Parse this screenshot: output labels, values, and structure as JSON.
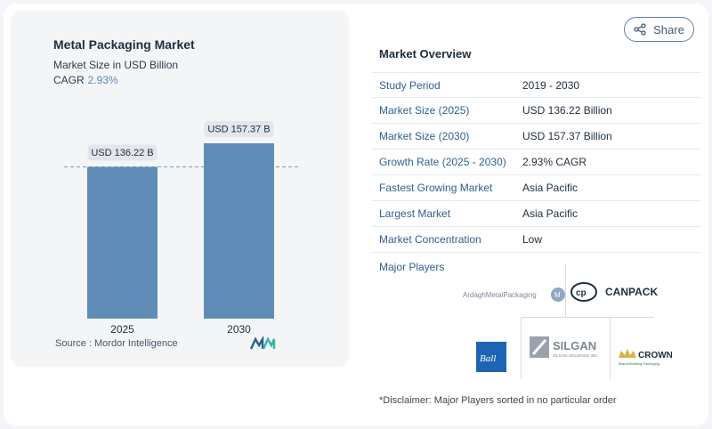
{
  "chart": {
    "title": "Metal Packaging Market",
    "subtitle": "Market Size in USD Billion",
    "cagr_label": "CAGR",
    "cagr_value": "2.93%",
    "source": "Source :  Mordor Intelligence"
  },
  "chart_data": {
    "type": "bar",
    "categories": [
      "2025",
      "2030"
    ],
    "values": [
      136.22,
      157.37
    ],
    "data_labels": [
      "USD 136.22 B",
      "USD 157.37 B"
    ],
    "title": "Metal Packaging Market",
    "subtitle": "Market Size in USD Billion",
    "grid": false,
    "bar_color": "#5f8db8"
  },
  "share": {
    "label": "Share"
  },
  "overview": {
    "title": "Market Overview",
    "rows": [
      {
        "label": "Study Period",
        "value": "2019 - 2030"
      },
      {
        "label": "Market Size (2025)",
        "value": "USD 136.22 Billion"
      },
      {
        "label": "Market Size (2030)",
        "value": "USD 157.37 Billion"
      },
      {
        "label": "Growth Rate (2025 - 2030)",
        "value": "2.93% CAGR"
      },
      {
        "label": "Fastest Growing Market",
        "value": "Asia Pacific"
      },
      {
        "label": "Largest Market",
        "value": "Asia Pacific"
      },
      {
        "label": "Market Concentration",
        "value": "Low"
      }
    ]
  },
  "players": {
    "title": "Major Players",
    "logos": [
      "ArdaghMetalPackaging",
      "CANPACK",
      "Ball",
      "SILGAN HOLDINGS INC.",
      "CROWN"
    ]
  },
  "disclaimer": "*Disclaimer: Major Players sorted in no particular order",
  "colors": {
    "accent": "#2e5f93",
    "bar": "#5f8db8",
    "card": "#f4f5f7"
  }
}
